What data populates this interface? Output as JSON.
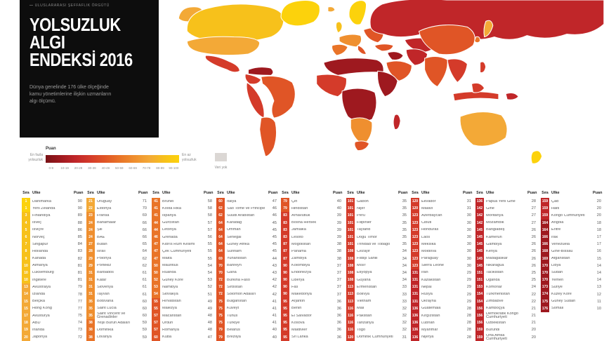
{
  "infobox": {
    "source_line": "ULUSLARARASI ŞEFFAFLIK ÖRGÜTÜ",
    "title_line1": "YOLSUZLUK",
    "title_line2": "ALGI",
    "title_line3": "ENDEKSİ 2016",
    "subtitle": "Dünya genelinde 176 ülke ölçeğinde kamu yönetimlerine ilişkin uzmanların algı ölçümü."
  },
  "palette": [
    "#791216",
    "#9E191F",
    "#C02629",
    "#D43B2A",
    "#E05526",
    "#E97428",
    "#EF8F2F",
    "#F3A937",
    "#F7C11B",
    "#FCD20C"
  ],
  "legend": {
    "score_label": "Puan",
    "left_label_line1": "En fazla",
    "left_label_line2": "yolsuzluk",
    "right_label_line1": "En az",
    "right_label_line2": "yolsuzluk",
    "ticks": [
      "0-9",
      "10-19",
      "20-29",
      "30-39",
      "40-49",
      "50-59",
      "60-69",
      "70-79",
      "80-89",
      "90-100"
    ],
    "nodata_label": "Veri yok",
    "nodata_color": "#DBD7D4"
  },
  "map_regions": {
    "alaska": 7,
    "canada": 8,
    "greenland": 9,
    "usa": 7,
    "mexico": 3,
    "venezuela": 1,
    "colombia": 3,
    "brazil": 4,
    "peru": 3,
    "argentina": 4,
    "iceland": 7,
    "uk": 8,
    "scandinavia": 9,
    "western-europe": 6,
    "iberia": 5,
    "italy": 4,
    "eastern-europe": 4,
    "russia": 2,
    "central-asia": 2,
    "turkey": 4,
    "iraq-syria": 1,
    "saudi-arabia": 4,
    "iran": 2,
    "north-africa": 1,
    "west-africa": 3,
    "central-africa": 1,
    "east-africa": 1,
    "southern-africa": 6,
    "south-africa": 4,
    "madagascar": 2,
    "india": 4,
    "china": 4,
    "se-asia": 3,
    "indonesia": 3,
    "borneo": 3,
    "philippines": 3,
    "japan": 7,
    "south-korea": 5,
    "papua": 2,
    "australia": 7,
    "new-zealand": 9
  },
  "table": {
    "headers": {
      "rank": "Sıra",
      "country": "Ülke",
      "score": "Puan"
    },
    "columns": [
      [
        [
          1,
          "Danimarka",
          90
        ],
        [
          1,
          "Yeni Zelanda",
          90
        ],
        [
          3,
          "Finlandiya",
          89
        ],
        [
          4,
          "İsveç",
          88
        ],
        [
          5,
          "İsviçre",
          86
        ],
        [
          6,
          "Norveç",
          85
        ],
        [
          7,
          "Singapur",
          84
        ],
        [
          8,
          "Hollanda",
          83
        ],
        [
          9,
          "Kanada",
          82
        ],
        [
          10,
          "Almanya",
          81
        ],
        [
          10,
          "Lüksemburg",
          81
        ],
        [
          10,
          "İngiltere",
          81
        ],
        [
          13,
          "Avustralya",
          79
        ],
        [
          14,
          "İzlanda",
          78
        ],
        [
          15,
          "Belçika",
          77
        ],
        [
          15,
          "Hong Kong",
          77
        ],
        [
          17,
          "Avusturya",
          75
        ],
        [
          18,
          "ABD",
          74
        ],
        [
          19,
          "İrlanda",
          73
        ],
        [
          20,
          "Japonya",
          72
        ]
      ],
      [
        [
          21,
          "Uruguay",
          71
        ],
        [
          22,
          "Estonya",
          70
        ],
        [
          23,
          "Fransa",
          69
        ],
        [
          24,
          "Bahamalar",
          66
        ],
        [
          24,
          "Şili",
          66
        ],
        [
          24,
          "BAE",
          66
        ],
        [
          27,
          "Butan",
          65
        ],
        [
          28,
          "İsrail",
          64
        ],
        [
          29,
          "Polonya",
          62
        ],
        [
          29,
          "Portekiz",
          62
        ],
        [
          31,
          "Barbados",
          61
        ],
        [
          31,
          "Katar",
          61
        ],
        [
          31,
          "Slovenya",
          61
        ],
        [
          31,
          "Tayvan",
          61
        ],
        [
          35,
          "Botsvana",
          60
        ],
        [
          35,
          "Saint Lucia",
          60
        ],
        [
          35,
          "Saint Vincent ve Grenadinler",
          60
        ],
        [
          38,
          "Yeşil Burun Adaları",
          59
        ],
        [
          38,
          "Dominika",
          59
        ],
        [
          38,
          "Litvanya",
          59
        ]
      ],
      [
        [
          41,
          "Brunei",
          58
        ],
        [
          41,
          "Kosta Rika",
          58
        ],
        [
          41,
          "İspanya",
          58
        ],
        [
          44,
          "Gürcistan",
          57
        ],
        [
          44,
          "Letonya",
          57
        ],
        [
          46,
          "Grenada",
          56
        ],
        [
          47,
          "Kıbrıs Rum Kesimi",
          55
        ],
        [
          47,
          "Çek Cumhuriyeti",
          55
        ],
        [
          47,
          "Malta",
          55
        ],
        [
          50,
          "Mauritius",
          54
        ],
        [
          50,
          "Ruanda",
          54
        ],
        [
          52,
          "Güney Kore",
          53
        ],
        [
          53,
          "Namibya",
          52
        ],
        [
          54,
          "Slovakya",
          51
        ],
        [
          55,
          "Hırvatistan",
          49
        ],
        [
          55,
          "Malezya",
          49
        ],
        [
          57,
          "Macaristan",
          48
        ],
        [
          57,
          "Ürdün",
          48
        ],
        [
          57,
          "Romanya",
          48
        ],
        [
          60,
          "Küba",
          47
        ]
      ],
      [
        [
          60,
          "İtalya",
          47
        ],
        [
          62,
          "Sao Tome ve Principe",
          46
        ],
        [
          62,
          "Suudi Arabistan",
          46
        ],
        [
          64,
          "Karadağ",
          45
        ],
        [
          64,
          "Umman",
          45
        ],
        [
          64,
          "Senegal",
          45
        ],
        [
          64,
          "Güney Afrika",
          45
        ],
        [
          64,
          "Surinam",
          45
        ],
        [
          69,
          "Yunanistan",
          44
        ],
        [
          70,
          "Bahreyn",
          43
        ],
        [
          70,
          "Gana",
          43
        ],
        [
          72,
          "Burkina Faso",
          42
        ],
        [
          72,
          "Sırbistan",
          42
        ],
        [
          72,
          "Solomon Adaları",
          42
        ],
        [
          75,
          "Bulgaristan",
          41
        ],
        [
          75,
          "Kuveyt",
          41
        ],
        [
          75,
          "Tunus",
          41
        ],
        [
          75,
          "Türkiye",
          41
        ],
        [
          79,
          "Belarus",
          40
        ],
        [
          79,
          "Brezilya",
          40
        ]
      ],
      [
        [
          79,
          "Çin",
          40
        ],
        [
          79,
          "Hindistan",
          40
        ],
        [
          83,
          "Arnavutluk",
          39
        ],
        [
          83,
          "Bosna Hersek",
          39
        ],
        [
          83,
          "Jamaika",
          39
        ],
        [
          83,
          "Lesoto",
          39
        ],
        [
          87,
          "Moğolistan",
          38
        ],
        [
          87,
          "Panama",
          38
        ],
        [
          87,
          "Zambiya",
          38
        ],
        [
          90,
          "Kolombiya",
          37
        ],
        [
          90,
          "Endonezya",
          37
        ],
        [
          90,
          "Liberya",
          37
        ],
        [
          90,
          "Fas",
          37
        ],
        [
          90,
          "Makedonya",
          37
        ],
        [
          95,
          "Arjantin",
          36
        ],
        [
          95,
          "Benin",
          36
        ],
        [
          95,
          "El Salvador",
          36
        ],
        [
          95,
          "Kosova",
          36
        ],
        [
          95,
          "Maldivler",
          36
        ],
        [
          95,
          "Sri Lanka",
          36
        ]
      ],
      [
        [
          101,
          "Gabon",
          35
        ],
        [
          101,
          "Nijer",
          35
        ],
        [
          101,
          "Peru",
          35
        ],
        [
          101,
          "Filipinler",
          35
        ],
        [
          101,
          "Tayland",
          35
        ],
        [
          101,
          "Doğu Timor",
          35
        ],
        [
          101,
          "Trinidad ve Tobago",
          35
        ],
        [
          108,
          "Cezayir",
          34
        ],
        [
          108,
          "Fildişi Sahili",
          34
        ],
        [
          108,
          "Mısır",
          34
        ],
        [
          108,
          "Etiyopya",
          34
        ],
        [
          108,
          "Guyana",
          34
        ],
        [
          113,
          "Ermenistan",
          33
        ],
        [
          113,
          "Bolivya",
          33
        ],
        [
          113,
          "Vietnam",
          33
        ],
        [
          116,
          "Mali",
          32
        ],
        [
          116,
          "Pakistan",
          32
        ],
        [
          116,
          "Tanzanya",
          32
        ],
        [
          116,
          "Togo",
          32
        ],
        [
          120,
          "Dominik Cumhuriyeti",
          31
        ]
      ],
      [
        [
          120,
          "Ekvador",
          31
        ],
        [
          120,
          "Malavi",
          31
        ],
        [
          123,
          "Azerbaycan",
          30
        ],
        [
          123,
          "Cibuti",
          30
        ],
        [
          123,
          "Honduras",
          30
        ],
        [
          123,
          "Laos",
          30
        ],
        [
          123,
          "Meksika",
          30
        ],
        [
          123,
          "Moldova",
          30
        ],
        [
          123,
          "Paraguay",
          30
        ],
        [
          123,
          "Sierra Leone",
          30
        ],
        [
          131,
          "İran",
          29
        ],
        [
          131,
          "Kazakistan",
          29
        ],
        [
          131,
          "Nepal",
          29
        ],
        [
          131,
          "Rusya",
          29
        ],
        [
          131,
          "Ukrayna",
          29
        ],
        [
          136,
          "Guatemala",
          28
        ],
        [
          136,
          "Kırgızistan",
          28
        ],
        [
          136,
          "Lübnan",
          28
        ],
        [
          136,
          "Myanmar",
          28
        ],
        [
          136,
          "Nijerya",
          28
        ]
      ],
      [
        [
          136,
          "Papua Yeni Gine",
          28
        ],
        [
          142,
          "Gine",
          27
        ],
        [
          142,
          "Moritanya",
          27
        ],
        [
          142,
          "Mozambik",
          27
        ],
        [
          145,
          "Bangladeş",
          26
        ],
        [
          145,
          "Kamerun",
          26
        ],
        [
          145,
          "Gambiya",
          26
        ],
        [
          145,
          "Kenya",
          26
        ],
        [
          145,
          "Madagaskar",
          26
        ],
        [
          145,
          "Nikaragua",
          26
        ],
        [
          151,
          "Tacikistan",
          25
        ],
        [
          151,
          "Uganda",
          25
        ],
        [
          153,
          "Komorlar",
          24
        ],
        [
          154,
          "Türkmenistan",
          22
        ],
        [
          154,
          "Zimbabve",
          22
        ],
        [
          156,
          "Kamboçya",
          21
        ],
        [
          156,
          "Demokratik Kongo Cumhuriyeti",
          21
        ],
        [
          156,
          "Özbekistan",
          21
        ],
        [
          159,
          "Burundi",
          20
        ],
        [
          159,
          "Orta Afrika Cumhuriyeti",
          20
        ]
      ],
      [
        [
          159,
          "Çad",
          20
        ],
        [
          159,
          "Haiti",
          20
        ],
        [
          159,
          "Kongo Cumhuriyeti",
          20
        ],
        [
          164,
          "Angola",
          18
        ],
        [
          164,
          "Eritre",
          18
        ],
        [
          166,
          "Irak",
          17
        ],
        [
          166,
          "Venezuela",
          17
        ],
        [
          168,
          "Gine-Bissau",
          16
        ],
        [
          169,
          "Afganistan",
          15
        ],
        [
          170,
          "Libya",
          14
        ],
        [
          170,
          "Sudan",
          14
        ],
        [
          170,
          "Yemen",
          14
        ],
        [
          173,
          "Suriye",
          13
        ],
        [
          174,
          "Kuzey Kore",
          12
        ],
        [
          175,
          "Güney Sudan",
          11
        ],
        [
          176,
          "Somali",
          10
        ]
      ]
    ],
    "column_lefts": [
      31,
      123,
      216,
      308,
      400,
      493,
      585,
      677,
      770
    ]
  }
}
